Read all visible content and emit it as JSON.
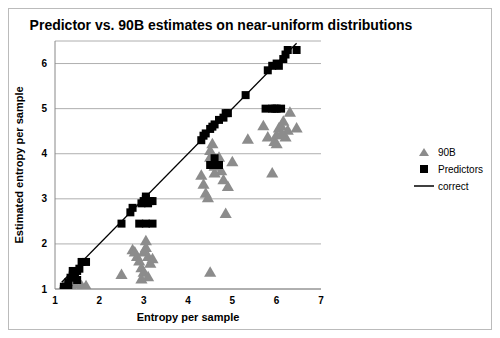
{
  "chart_data": {
    "type": "scatter",
    "title": "Predictor vs. 90B estimates on near-uniform distributions",
    "x_label": "Entropy per sample",
    "y_label": "Estimated entropy per sample",
    "xlim": [
      1,
      7
    ],
    "xticks": [
      1,
      2,
      3,
      4,
      5,
      6,
      7
    ],
    "ylim": [
      1,
      6.5
    ],
    "yticks": [
      1,
      2,
      3,
      4,
      5,
      6
    ],
    "grid": true,
    "legend": "right",
    "series": [
      {
        "name": "90B",
        "type": "scatter",
        "marker": "triangle",
        "color": "#8c8c8c",
        "x": [
          1.2,
          1.3,
          1.4,
          1.45,
          1.6,
          1.7,
          1.35,
          2.5,
          2.75,
          2.8,
          2.85,
          2.9,
          2.95,
          3.0,
          3.0,
          3.05,
          3.05,
          3.1,
          3.1,
          3.15,
          3.2,
          2.95,
          4.3,
          4.35,
          4.4,
          4.45,
          4.5,
          4.5,
          4.55,
          4.6,
          4.65,
          4.7,
          4.75,
          4.8,
          4.85,
          4.9,
          5.0,
          4.5,
          4.6,
          5.35,
          5.8,
          5.9,
          5.95,
          6.0,
          6.05,
          6.1,
          6.15,
          6.2,
          6.25,
          6.3,
          6.45,
          6.0,
          6.1,
          5.7
        ],
        "values": [
          1.05,
          1.1,
          1.0,
          1.1,
          1.05,
          1.05,
          1.2,
          1.3,
          1.85,
          1.8,
          1.7,
          1.6,
          1.45,
          1.35,
          1.8,
          1.9,
          2.05,
          1.7,
          1.25,
          1.55,
          1.65,
          1.2,
          3.5,
          3.3,
          3.1,
          3.0,
          3.9,
          4.05,
          4.2,
          3.7,
          3.8,
          3.9,
          3.6,
          3.4,
          2.65,
          3.25,
          3.8,
          1.35,
          3.55,
          4.3,
          4.35,
          3.55,
          4.25,
          4.4,
          4.55,
          4.6,
          4.7,
          4.35,
          4.5,
          4.9,
          4.55,
          4.2,
          4.4,
          4.6
        ]
      },
      {
        "name": "Predictors",
        "type": "scatter",
        "marker": "square",
        "color": "#000000",
        "x": [
          1.2,
          1.2,
          1.3,
          1.35,
          1.4,
          1.4,
          1.45,
          1.5,
          1.55,
          1.6,
          1.7,
          1.3,
          1.5,
          2.5,
          2.7,
          2.75,
          2.9,
          2.95,
          3.0,
          3.05,
          3.05,
          3.1,
          3.15,
          3.2,
          3.05,
          3.2,
          4.3,
          4.35,
          4.4,
          4.5,
          4.55,
          4.6,
          4.7,
          4.8,
          4.85,
          4.9,
          4.5,
          4.55,
          4.7,
          4.6,
          5.3,
          5.8,
          5.9,
          6.0,
          6.05,
          6.15,
          6.2,
          6.25,
          6.45,
          5.75,
          5.95,
          6.0,
          6.1,
          5.9
        ],
        "values": [
          1.05,
          1.0,
          1.15,
          1.25,
          1.3,
          1.4,
          1.35,
          1.4,
          1.45,
          1.6,
          1.6,
          1.0,
          1.2,
          2.45,
          2.7,
          2.8,
          2.45,
          2.9,
          2.95,
          3.0,
          2.45,
          2.9,
          2.95,
          2.95,
          3.05,
          2.45,
          4.3,
          4.4,
          4.45,
          4.55,
          4.6,
          4.65,
          4.75,
          4.8,
          4.9,
          4.9,
          3.75,
          3.75,
          3.75,
          3.9,
          5.3,
          5.85,
          5.95,
          6.0,
          5.95,
          6.1,
          6.2,
          6.3,
          6.3,
          5.0,
          5.0,
          5.0,
          5.0,
          5.0
        ]
      },
      {
        "name": "correct",
        "type": "line",
        "line_style": "solid",
        "color": "#000000",
        "x": [
          1.15,
          6.45
        ],
        "values": [
          1.15,
          6.45
        ]
      }
    ]
  }
}
